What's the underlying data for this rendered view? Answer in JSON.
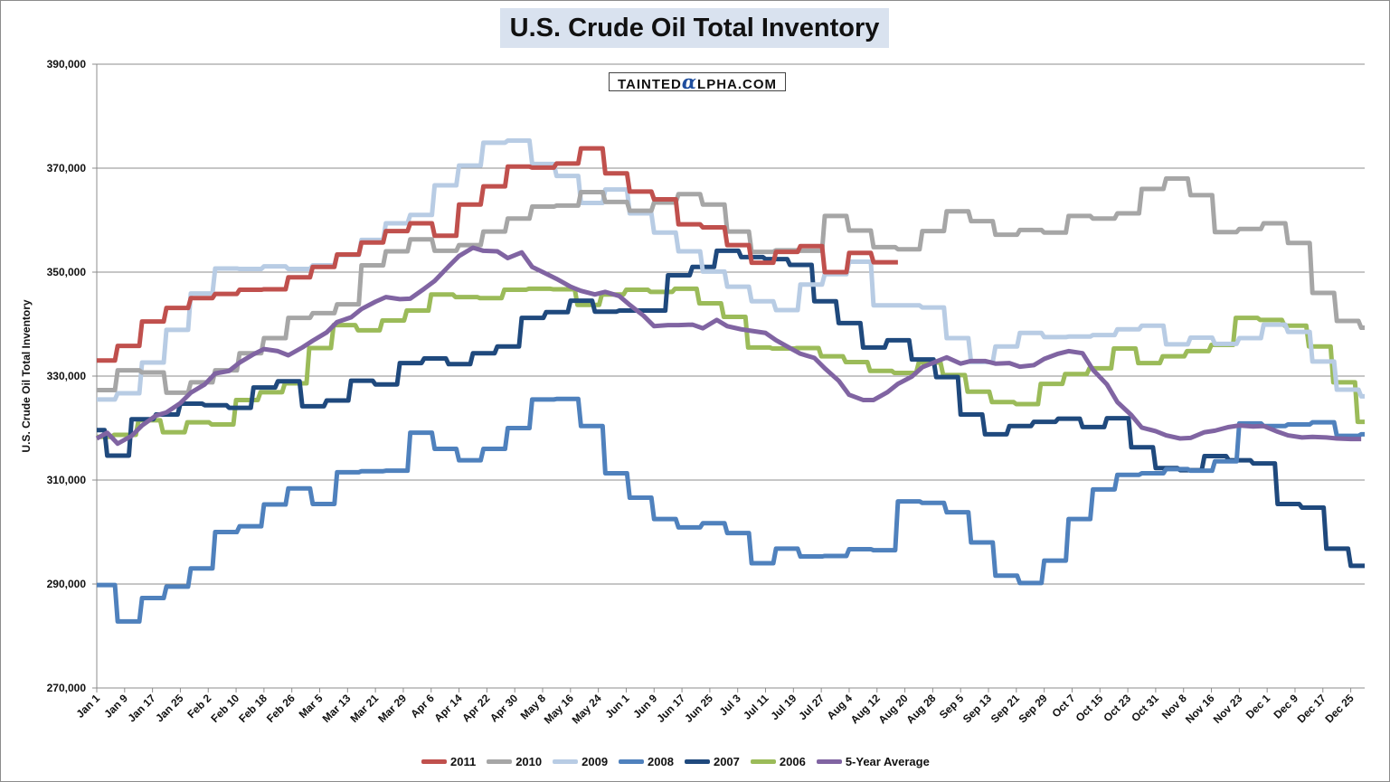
{
  "title": "U.S. Crude Oil Total Inventory",
  "watermark": {
    "left": "TAINTED",
    "alpha": "α",
    "right": "LPHA.COM"
  },
  "chart_data": {
    "type": "line",
    "title": "U.S. Crude Oil Total Inventory",
    "xlabel": "",
    "ylabel": "U.S. Crude Oil Total Inventory",
    "ylim": [
      270000,
      390000
    ],
    "yticks": [
      270000,
      290000,
      310000,
      330000,
      350000,
      370000,
      390000
    ],
    "ytick_labels": [
      "270,000",
      "290,000",
      "310,000",
      "330,000",
      "350,000",
      "370,000",
      "390,000"
    ],
    "xtick_labels": [
      "Jan 1",
      "Jan 9",
      "Jan 17",
      "Jan 25",
      "Feb 2",
      "Feb 10",
      "Feb 18",
      "Feb 26",
      "Mar 5",
      "Mar 13",
      "Mar 21",
      "Mar 29",
      "Apr 6",
      "Apr 14",
      "Apr 22",
      "Apr 30",
      "May 8",
      "May 16",
      "May 24",
      "Jun 1",
      "Jun 9",
      "Jun 17",
      "Jun 25",
      "Jul 3",
      "Jul 11",
      "Jul 19",
      "Jul 27",
      "Aug 4",
      "Aug 12",
      "Aug 20",
      "Aug 28",
      "Sep 5",
      "Sep 13",
      "Sep 21",
      "Sep 29",
      "Oct 7",
      "Oct 15",
      "Oct 23",
      "Oct 31",
      "Nov 8",
      "Nov 16",
      "Nov 23",
      "Dec 1",
      "Dec 9",
      "Dec 17",
      "Dec 25"
    ],
    "x_unit": "day of year",
    "grid": true,
    "legend_position": "bottom",
    "series": [
      {
        "name": "2011",
        "color": "#c0504d",
        "style": "step",
        "x": [
          1,
          7,
          14,
          21,
          28,
          35,
          42,
          49,
          56,
          63,
          70,
          77,
          84,
          91,
          98,
          105,
          112,
          119,
          126,
          133,
          140,
          147,
          154,
          161,
          168,
          175,
          182,
          189,
          196,
          203,
          210,
          217,
          224,
          231
        ],
        "values": [
          333000,
          335800,
          340500,
          343100,
          345000,
          345800,
          346600,
          346700,
          349000,
          351000,
          353400,
          355700,
          357900,
          359400,
          357000,
          363000,
          366500,
          370300,
          370100,
          370900,
          373800,
          369000,
          365500,
          364000,
          359200,
          358600,
          355200,
          351800,
          353900,
          355000,
          350000,
          353700,
          351900,
          351900
        ]
      },
      {
        "name": "2010",
        "color": "#a6a6a6",
        "style": "step",
        "x": [
          1,
          7,
          14,
          21,
          28,
          35,
          42,
          49,
          56,
          63,
          70,
          77,
          84,
          91,
          98,
          105,
          112,
          119,
          126,
          133,
          140,
          147,
          154,
          161,
          168,
          175,
          182,
          189,
          196,
          203,
          210,
          217,
          224,
          231,
          238,
          245,
          252,
          259,
          266,
          273,
          280,
          287,
          294,
          301,
          308,
          315,
          322,
          329,
          336,
          343,
          350,
          357,
          364
        ],
        "values": [
          327300,
          331100,
          330700,
          326800,
          328800,
          331100,
          334400,
          337300,
          341200,
          342100,
          343800,
          351300,
          354000,
          356300,
          354100,
          355200,
          357800,
          360300,
          362600,
          362800,
          365400,
          363500,
          361800,
          363400,
          365000,
          363000,
          357800,
          353900,
          354200,
          354100,
          360800,
          358000,
          354800,
          354400,
          357900,
          361700,
          359800,
          357200,
          358100,
          357600,
          360800,
          360300,
          361300,
          366000,
          368000,
          364800,
          357700,
          358300,
          359400,
          355600,
          346000,
          340600,
          339300
        ]
      },
      {
        "name": "2009",
        "color": "#b8cce4",
        "style": "step",
        "x": [
          1,
          7,
          14,
          21,
          28,
          35,
          42,
          49,
          56,
          63,
          70,
          77,
          84,
          91,
          98,
          105,
          112,
          119,
          126,
          133,
          140,
          147,
          154,
          161,
          168,
          175,
          182,
          189,
          196,
          203,
          210,
          217,
          224,
          231,
          238,
          245,
          252,
          259,
          266,
          273,
          280,
          287,
          294,
          301,
          308,
          315,
          322,
          329,
          336,
          343,
          350,
          357,
          364
        ],
        "values": [
          325500,
          326700,
          332600,
          338900,
          345900,
          350700,
          350600,
          351100,
          350600,
          351300,
          353300,
          356200,
          359400,
          361000,
          366700,
          370500,
          374900,
          375300,
          370800,
          368500,
          363300,
          365900,
          361300,
          357600,
          354000,
          350100,
          347200,
          344400,
          342700,
          347600,
          349600,
          352000,
          343600,
          343600,
          343200,
          337300,
          332700,
          335700,
          338300,
          337500,
          337600,
          337900,
          339000,
          339700,
          336100,
          337400,
          336200,
          337300,
          339900,
          338500,
          332800,
          327400,
          326100
        ]
      },
      {
        "name": "2008",
        "color": "#4f81bd",
        "style": "step",
        "x": [
          1,
          7,
          14,
          21,
          28,
          35,
          42,
          49,
          56,
          63,
          70,
          77,
          84,
          91,
          98,
          105,
          112,
          119,
          126,
          133,
          140,
          147,
          154,
          161,
          168,
          175,
          182,
          189,
          196,
          203,
          210,
          217,
          224,
          231,
          238,
          245,
          252,
          259,
          266,
          273,
          280,
          287,
          294,
          301,
          308,
          315,
          322,
          329,
          336,
          343,
          350,
          357,
          364
        ],
        "values": [
          289800,
          282800,
          287300,
          289500,
          293000,
          300000,
          301100,
          305300,
          308400,
          305400,
          311500,
          311700,
          311800,
          319100,
          316000,
          313800,
          316000,
          320000,
          325500,
          325600,
          320400,
          311300,
          306600,
          302500,
          300900,
          301700,
          299800,
          294000,
          296800,
          295300,
          295400,
          296700,
          296500,
          305900,
          305600,
          303800,
          298000,
          291600,
          290200,
          294500,
          302500,
          308200,
          311000,
          311300,
          312100,
          311800,
          313600,
          320900,
          320400,
          320700,
          321100,
          318500,
          318800
        ]
      },
      {
        "name": "2007",
        "color": "#1f497d",
        "style": "step",
        "x": [
          1,
          4,
          11,
          18,
          25,
          32,
          39,
          46,
          53,
          60,
          67,
          74,
          81,
          88,
          95,
          102,
          109,
          116,
          123,
          130,
          137,
          144,
          151,
          158,
          165,
          172,
          179,
          186,
          193,
          200,
          207,
          214,
          221,
          228,
          235,
          242,
          249,
          256,
          263,
          270,
          277,
          284,
          291,
          298,
          305,
          312,
          319,
          326,
          333,
          340,
          347,
          354,
          361
        ],
        "values": [
          319600,
          314700,
          321700,
          322600,
          324700,
          324400,
          323900,
          327800,
          329000,
          324200,
          325300,
          329100,
          328400,
          332500,
          333400,
          332300,
          334400,
          335700,
          341200,
          342300,
          344500,
          342400,
          342600,
          342600,
          349400,
          351000,
          354100,
          352900,
          352500,
          351400,
          344400,
          340200,
          335500,
          336900,
          333200,
          329800,
          322600,
          318800,
          320400,
          321200,
          321800,
          320200,
          321900,
          316300,
          312300,
          311900,
          314600,
          313800,
          313200,
          305400,
          304700,
          296800,
          293500
        ]
      },
      {
        "name": "2006",
        "color": "#9bbb59",
        "style": "step",
        "x": [
          1,
          6,
          13,
          20,
          27,
          34,
          41,
          48,
          55,
          62,
          69,
          76,
          83,
          90,
          97,
          104,
          111,
          118,
          125,
          132,
          139,
          146,
          153,
          160,
          167,
          174,
          181,
          188,
          195,
          202,
          209,
          216,
          223,
          230,
          237,
          244,
          251,
          258,
          265,
          272,
          279,
          286,
          293,
          300,
          307,
          314,
          321,
          328,
          335,
          342,
          349,
          356,
          363
        ],
        "values": [
          318300,
          318700,
          321500,
          319200,
          321100,
          320700,
          325400,
          326900,
          328600,
          335400,
          339800,
          338800,
          340700,
          342600,
          345700,
          345200,
          345000,
          346600,
          346800,
          346700,
          343700,
          345700,
          346600,
          346200,
          346800,
          344000,
          341400,
          335500,
          335300,
          335400,
          333800,
          332700,
          331000,
          330600,
          332600,
          330200,
          327000,
          325000,
          324600,
          328500,
          330400,
          331500,
          335300,
          332500,
          333800,
          334800,
          336000,
          341200,
          340800,
          339700,
          335700,
          328800,
          321200
        ]
      },
      {
        "name": "5-Year Average",
        "color": "#8064a2",
        "style": "smooth",
        "x": [
          1,
          4,
          7,
          11,
          14,
          18,
          21,
          25,
          28,
          32,
          35,
          39,
          42,
          46,
          49,
          53,
          56,
          60,
          63,
          67,
          70,
          74,
          77,
          81,
          84,
          88,
          91,
          95,
          98,
          102,
          105,
          109,
          112,
          116,
          119,
          123,
          126,
          130,
          133,
          137,
          140,
          144,
          147,
          151,
          154,
          158,
          161,
          165,
          168,
          172,
          175,
          179,
          182,
          186,
          189,
          193,
          196,
          200,
          203,
          207,
          210,
          214,
          217,
          221,
          224,
          228,
          231,
          235,
          238,
          242,
          245,
          249,
          252,
          256,
          259,
          263,
          266,
          270,
          273,
          277,
          280,
          284,
          287,
          291,
          294,
          298,
          301,
          305,
          308,
          312,
          315,
          319,
          322,
          326,
          329,
          333,
          336,
          340,
          343,
          347,
          350,
          354,
          357,
          361,
          364
        ],
        "values": [
          318000,
          319100,
          317000,
          318500,
          320500,
          322400,
          323000,
          324800,
          326800,
          328400,
          330500,
          331000,
          332600,
          334200,
          335200,
          334800,
          334000,
          335500,
          336800,
          338400,
          340400,
          341300,
          342900,
          344300,
          345200,
          344800,
          344900,
          346800,
          348300,
          351100,
          353100,
          354700,
          354100,
          354000,
          352700,
          353800,
          351000,
          349700,
          348700,
          347200,
          346400,
          345700,
          346200,
          345400,
          343700,
          341600,
          339600,
          339800,
          339800,
          339900,
          339200,
          340800,
          339600,
          339000,
          338700,
          338300,
          336900,
          335400,
          334300,
          333500,
          331500,
          329100,
          326400,
          325400,
          325400,
          326900,
          328500,
          329900,
          331700,
          332800,
          333600,
          332400,
          332900,
          332900,
          332400,
          332500,
          331800,
          332100,
          333300,
          334300,
          334800,
          334400,
          331200,
          328400,
          325000,
          322500,
          320100,
          319400,
          318600,
          318000,
          318100,
          319200,
          319500,
          320200,
          320500,
          320300,
          320400,
          319300,
          318600,
          318200,
          318300,
          318200,
          318000,
          317900,
          317900
        ]
      }
    ]
  }
}
